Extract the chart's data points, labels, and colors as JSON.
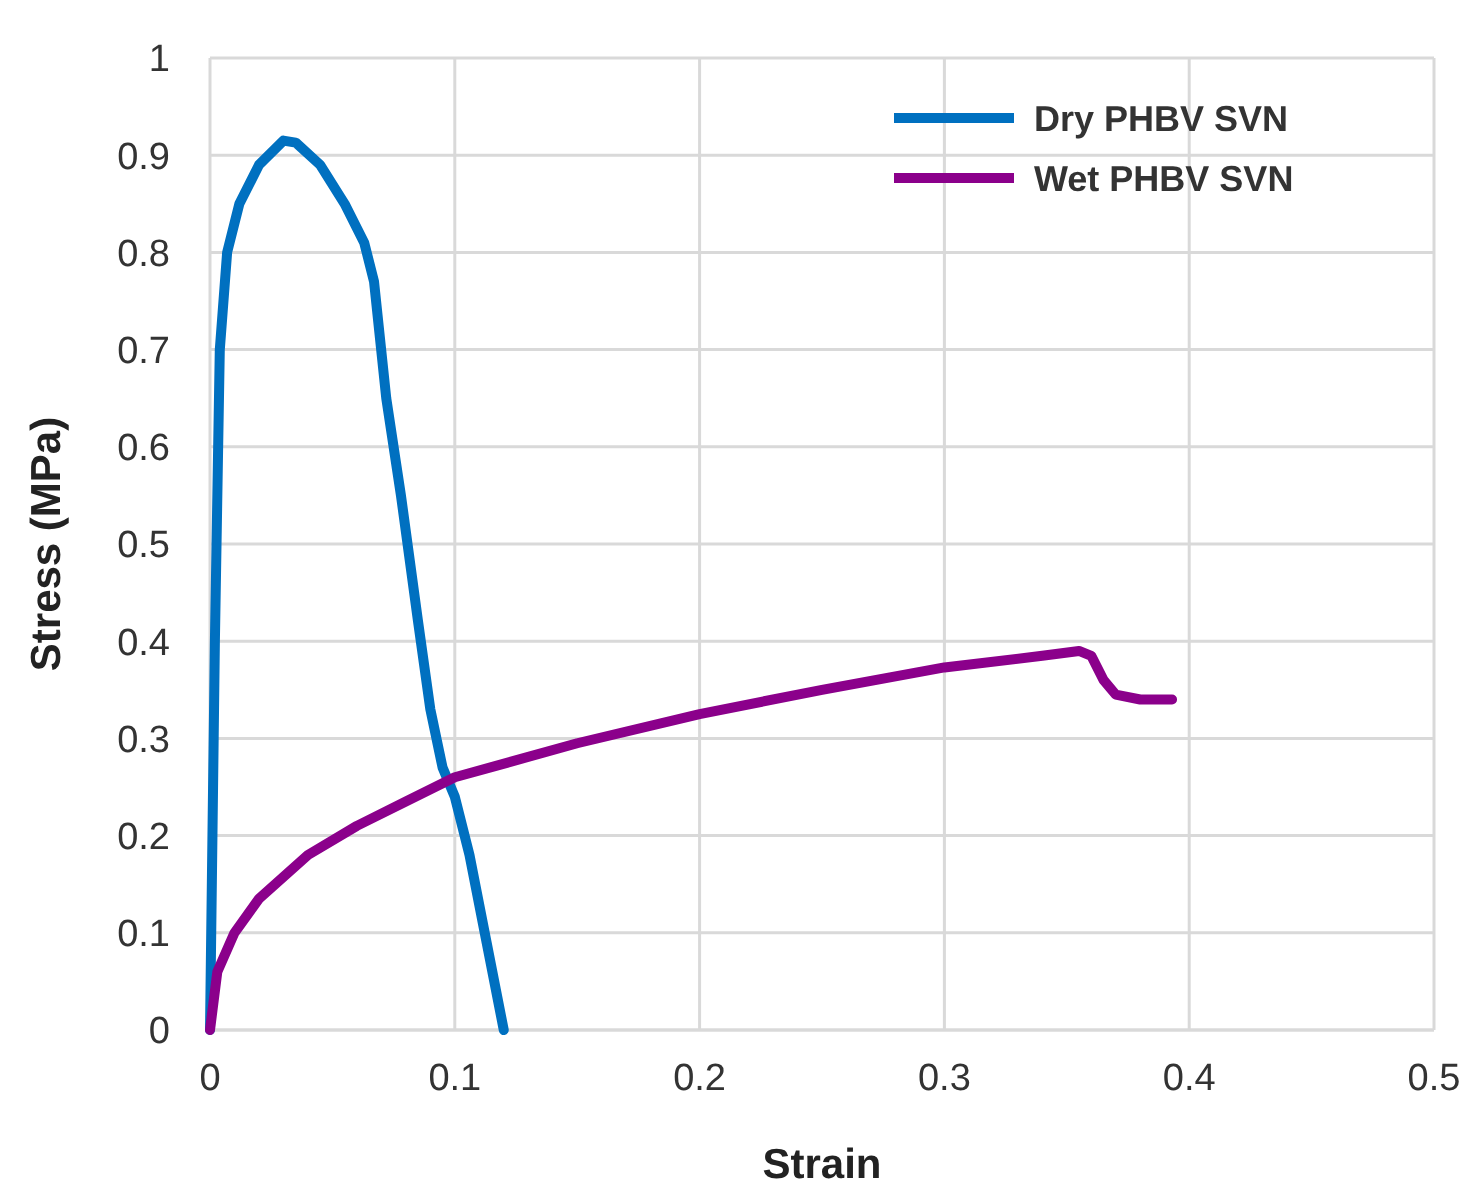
{
  "chart_data": {
    "type": "line",
    "xlabel": "Strain",
    "ylabel": "Stress (MPa)",
    "xlim": [
      0,
      0.5
    ],
    "xticks": [
      0,
      0.1,
      0.2,
      0.3,
      0.4,
      0.5
    ],
    "ylim": [
      0,
      1
    ],
    "yticks": [
      0,
      0.1,
      0.2,
      0.3,
      0.4,
      0.5,
      0.6,
      0.7,
      0.8,
      0.9,
      1
    ],
    "grid": true,
    "legend": "top right",
    "marker": "none",
    "series": [
      {
        "name": "Dry PHBV SVN",
        "color": "#0070c0",
        "x": [
          0,
          0.002,
          0.004,
          0.007,
          0.012,
          0.02,
          0.03,
          0.035,
          0.045,
          0.055,
          0.063,
          0.067,
          0.072,
          0.078,
          0.085,
          0.09,
          0.095,
          0.1,
          0.106,
          0.113,
          0.12
        ],
        "values": [
          0,
          0.4,
          0.7,
          0.8,
          0.85,
          0.89,
          0.915,
          0.913,
          0.89,
          0.85,
          0.81,
          0.77,
          0.65,
          0.55,
          0.42,
          0.33,
          0.27,
          0.24,
          0.18,
          0.09,
          0
        ]
      },
      {
        "name": "Wet PHBV SVN",
        "color": "#8b008b",
        "x": [
          0,
          0.003,
          0.01,
          0.02,
          0.04,
          0.06,
          0.08,
          0.1,
          0.15,
          0.2,
          0.25,
          0.3,
          0.34,
          0.355,
          0.36,
          0.365,
          0.37,
          0.38,
          0.393
        ],
        "values": [
          0,
          0.06,
          0.1,
          0.135,
          0.18,
          0.21,
          0.235,
          0.26,
          0.295,
          0.325,
          0.35,
          0.373,
          0.385,
          0.39,
          0.385,
          0.36,
          0.345,
          0.34,
          0.34
        ]
      }
    ]
  }
}
